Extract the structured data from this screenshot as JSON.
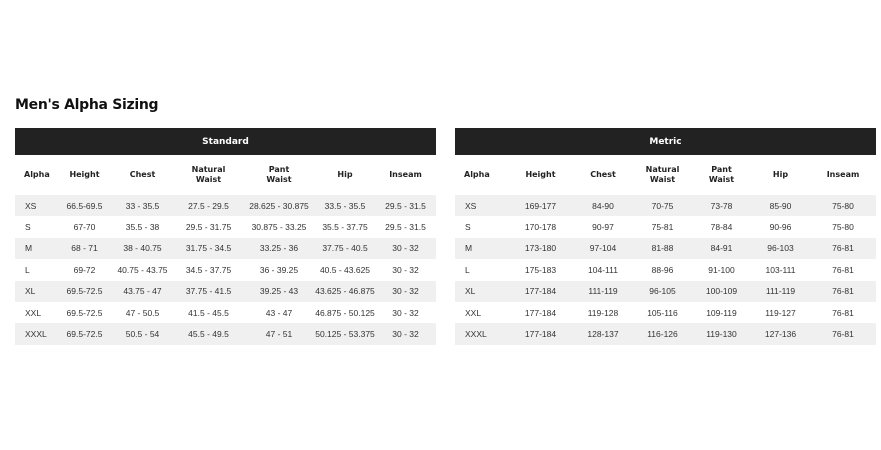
{
  "title": "Men's Alpha Sizing",
  "headers": [
    "Alpha",
    "Height",
    "Chest",
    "Natural Waist",
    "Pant Waist",
    "Hip",
    "Inseam"
  ],
  "standard": {
    "label": "Standard",
    "rows": [
      [
        "XS",
        "66.5-69.5",
        "33 - 35.5",
        "27.5 - 29.5",
        "28.625 - 30.875",
        "33.5 - 35.5",
        "29.5 - 31.5"
      ],
      [
        "S",
        "67-70",
        "35.5 - 38",
        "29.5 - 31.75",
        "30.875 - 33.25",
        "35.5 - 37.75",
        "29.5 - 31.5"
      ],
      [
        "M",
        "68 - 71",
        "38 - 40.75",
        "31.75 - 34.5",
        "33.25 - 36",
        "37.75 - 40.5",
        "30 - 32"
      ],
      [
        "L",
        "69-72",
        "40.75 - 43.75",
        "34.5 - 37.75",
        "36 - 39.25",
        "40.5 - 43.625",
        "30 - 32"
      ],
      [
        "XL",
        "69.5-72.5",
        "43.75 - 47",
        "37.75 - 41.5",
        "39.25 - 43",
        "43.625 - 46.875",
        "30 - 32"
      ],
      [
        "XXL",
        "69.5-72.5",
        "47 - 50.5",
        "41.5 - 45.5",
        "43 - 47",
        "46.875 - 50.125",
        "30 - 32"
      ],
      [
        "XXXL",
        "69.5-72.5",
        "50.5 - 54",
        "45.5 - 49.5",
        "47 - 51",
        "50.125 - 53.375",
        "30 - 32"
      ]
    ]
  },
  "metric": {
    "label": "Metric",
    "rows": [
      [
        "XS",
        "169-177",
        "84-90",
        "70-75",
        "73-78",
        "85-90",
        "75-80"
      ],
      [
        "S",
        "170-178",
        "90-97",
        "75-81",
        "78-84",
        "90-96",
        "75-80"
      ],
      [
        "M",
        "173-180",
        "97-104",
        "81-88",
        "84-91",
        "96-103",
        "76-81"
      ],
      [
        "L",
        "175-183",
        "104-111",
        "88-96",
        "91-100",
        "103-111",
        "76-81"
      ],
      [
        "XL",
        "177-184",
        "111-119",
        "96-105",
        "100-109",
        "111-119",
        "76-81"
      ],
      [
        "XXL",
        "177-184",
        "119-128",
        "105-116",
        "109-119",
        "119-127",
        "76-81"
      ],
      [
        "XXXL",
        "177-184",
        "128-137",
        "116-126",
        "119-130",
        "127-136",
        "76-81"
      ]
    ]
  },
  "colors": {
    "header_bar": "#222222",
    "row_stripe": "#f0f0f0"
  }
}
